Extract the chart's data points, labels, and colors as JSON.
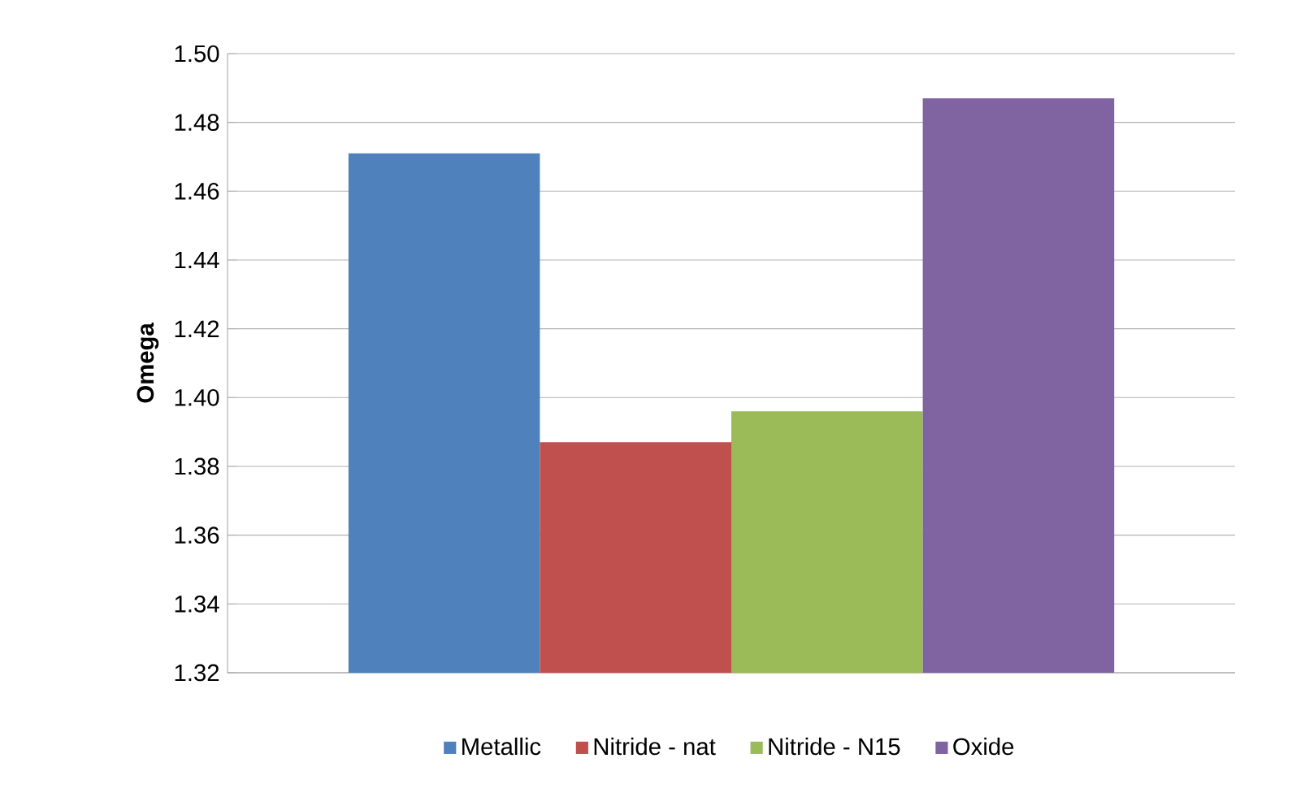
{
  "chart_data": {
    "type": "bar",
    "ylabel": "Omega",
    "categories": [
      null
    ],
    "series": [
      {
        "name": "Metallic",
        "color": "#4f81bd",
        "values": [
          1.471
        ]
      },
      {
        "name": "Nitride - nat",
        "color": "#c0504d",
        "values": [
          1.387
        ]
      },
      {
        "name": "Nitride - N15",
        "color": "#9bbb59",
        "values": [
          1.396
        ]
      },
      {
        "name": "Oxide",
        "color": "#8064a2",
        "values": [
          1.487
        ]
      }
    ],
    "ylim": [
      1.32,
      1.5
    ],
    "yticks": [
      {
        "value": 1.32,
        "label": "1.32"
      },
      {
        "value": 1.34,
        "label": "1.34"
      },
      {
        "value": 1.36,
        "label": "1.36"
      },
      {
        "value": 1.38,
        "label": "1.38"
      },
      {
        "value": 1.4,
        "label": "1.40"
      },
      {
        "value": 1.42,
        "label": "1.42"
      },
      {
        "value": 1.44,
        "label": "1.44"
      },
      {
        "value": 1.46,
        "label": "1.46"
      },
      {
        "value": 1.48,
        "label": "1.48"
      },
      {
        "value": 1.5,
        "label": "1.50"
      }
    ],
    "grid": "y",
    "legend": "bottom"
  }
}
